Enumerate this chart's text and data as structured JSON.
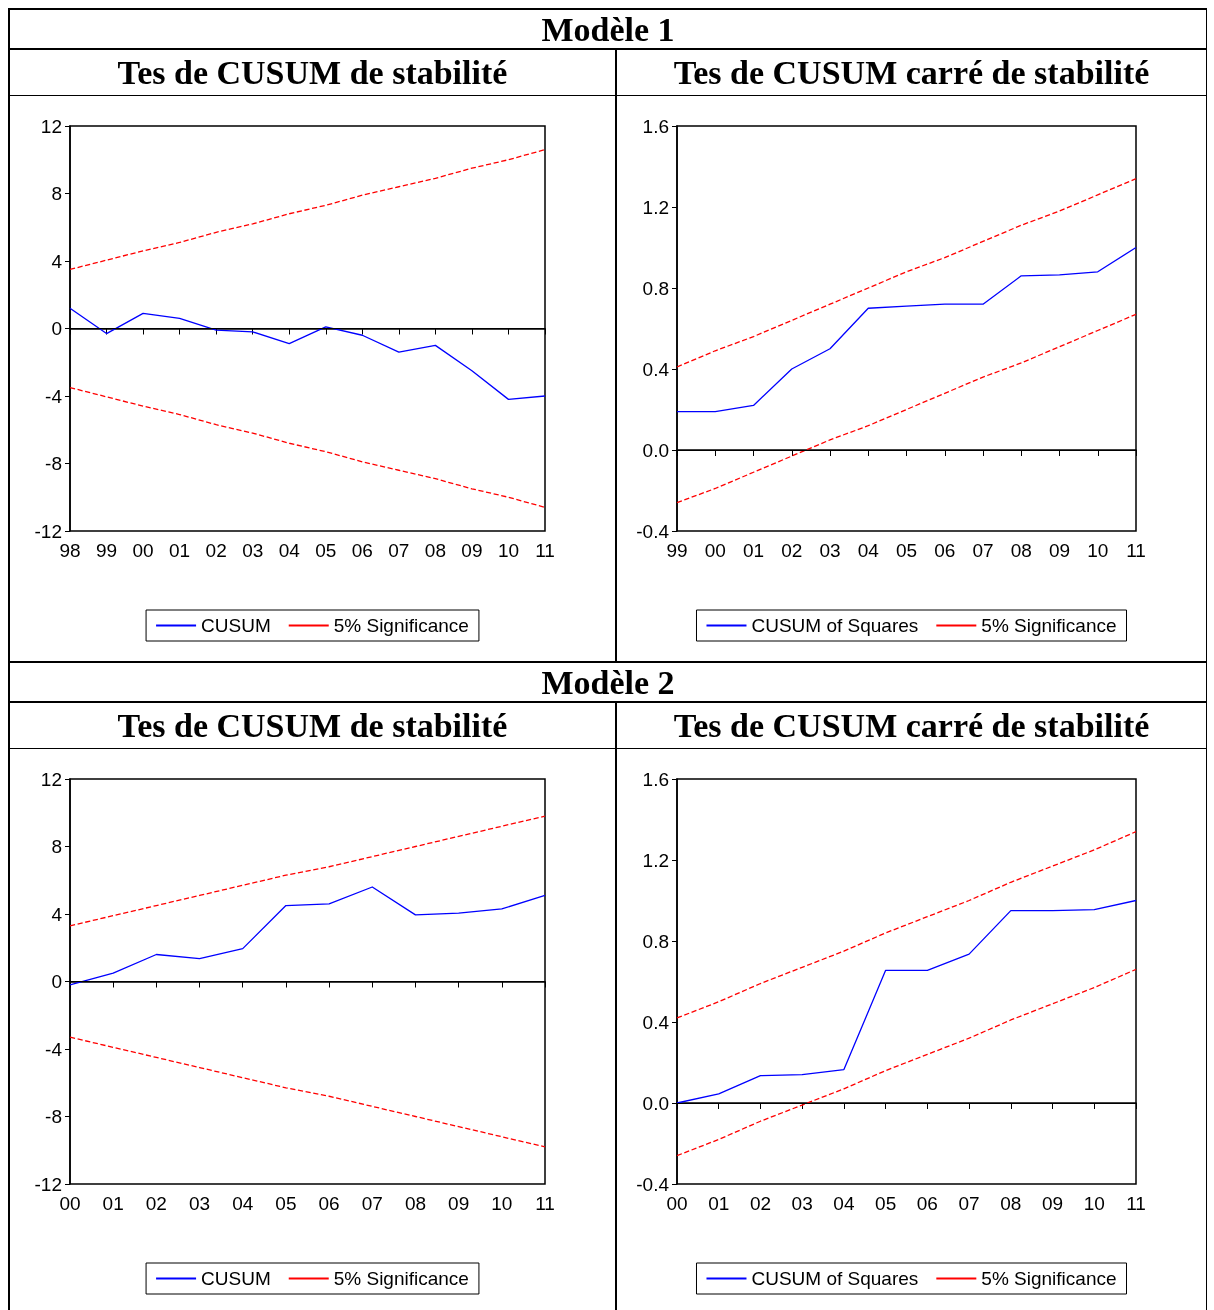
{
  "chart_data": [
    {
      "type": "line",
      "subtitle": "Modèle 1",
      "title": "Tes de CUSUM de stabilité",
      "categories": [
        "98",
        "99",
        "00",
        "01",
        "02",
        "03",
        "04",
        "05",
        "06",
        "07",
        "08",
        "09",
        "10",
        "11"
      ],
      "ylim": [
        -12,
        12
      ],
      "yticks": [
        -12,
        -8,
        -4,
        0,
        4,
        8,
        12
      ],
      "legend": "bottom",
      "marker": "none",
      "ref_lines": [
        {
          "axis": "y",
          "value": 0,
          "color": "#000000"
        }
      ],
      "series": [
        {
          "name": "CUSUM",
          "color": "#0000ff",
          "line_style": "solid",
          "values": [
            1.2,
            -0.3,
            0.9,
            0.6,
            -0.1,
            -0.2,
            -0.9,
            0.1,
            -0.4,
            -1.4,
            -1.0,
            -2.5,
            -4.2,
            -4.0
          ]
        },
        {
          "name": "5% Significance",
          "color": "#ff0000",
          "line_style": "dashed",
          "values": [
            3.5,
            4.05,
            4.6,
            5.1,
            5.7,
            6.2,
            6.8,
            7.3,
            7.9,
            8.4,
            8.9,
            9.5,
            10.0,
            10.6
          ]
        },
        {
          "color": "#ff0000",
          "line_style": "dashed",
          "values": [
            -3.5,
            -4.05,
            -4.6,
            -5.1,
            -5.7,
            -6.2,
            -6.8,
            -7.3,
            -7.9,
            -8.4,
            -8.9,
            -9.5,
            -10.0,
            -10.6
          ]
        }
      ]
    },
    {
      "type": "line",
      "title": "Tes de CUSUM carré de stabilité",
      "categories": [
        "99",
        "00",
        "01",
        "02",
        "03",
        "04",
        "05",
        "06",
        "07",
        "08",
        "09",
        "10",
        "11"
      ],
      "ylim": [
        -0.4,
        1.6
      ],
      "yticks": [
        {
          "value": -0.4,
          "label": "-0.4"
        },
        {
          "value": 0,
          "label": "0.0"
        },
        {
          "value": 0.4,
          "label": "0.4"
        },
        {
          "value": 0.8,
          "label": "0.8"
        },
        {
          "value": 1.2,
          "label": "1.2"
        },
        {
          "value": 1.6,
          "label": "1.6"
        }
      ],
      "legend": "bottom",
      "marker": "none",
      "ref_lines": [
        {
          "axis": "y",
          "value": 0,
          "color": "#000000"
        }
      ],
      "series": [
        {
          "name": "CUSUM of Squares",
          "color": "#0000ff",
          "line_style": "solid",
          "values": [
            0.19,
            0.19,
            0.22,
            0.4,
            0.5,
            0.7,
            0.71,
            0.72,
            0.72,
            0.86,
            0.865,
            0.88,
            1.0
          ]
        },
        {
          "name": "5% Significance",
          "color": "#ff0000",
          "line_style": "dashed",
          "values": [
            0.41,
            0.49,
            0.56,
            0.64,
            0.72,
            0.8,
            0.88,
            0.95,
            1.03,
            1.11,
            1.18,
            1.26,
            1.34
          ]
        },
        {
          "color": "#ff0000",
          "line_style": "dashed",
          "values": [
            -0.26,
            -0.19,
            -0.11,
            -0.03,
            0.05,
            0.12,
            0.2,
            0.28,
            0.36,
            0.43,
            0.51,
            0.59,
            0.67
          ]
        }
      ]
    },
    {
      "type": "line",
      "subtitle": "Modèle 2",
      "title": "Tes de CUSUM de stabilité",
      "categories": [
        "00",
        "01",
        "02",
        "03",
        "04",
        "05",
        "06",
        "07",
        "08",
        "09",
        "10",
        "11"
      ],
      "ylim": [
        -12,
        12
      ],
      "yticks": [
        -12,
        -8,
        -4,
        0,
        4,
        8,
        12
      ],
      "legend": "bottom",
      "marker": "none",
      "ref_lines": [
        {
          "axis": "y",
          "value": 0,
          "color": "#000000"
        }
      ],
      "series": [
        {
          "name": "CUSUM",
          "color": "#0000ff",
          "line_style": "solid",
          "values": [
            -0.2,
            0.5,
            1.6,
            1.35,
            1.95,
            4.5,
            4.6,
            5.6,
            3.95,
            4.05,
            4.3,
            5.1
          ]
        },
        {
          "name": "5% Significance",
          "color": "#ff0000",
          "line_style": "dashed",
          "values": [
            3.3,
            3.9,
            4.5,
            5.1,
            5.7,
            6.3,
            6.8,
            7.4,
            8.0,
            8.6,
            9.2,
            9.8
          ]
        },
        {
          "color": "#ff0000",
          "line_style": "dashed",
          "values": [
            -3.3,
            -3.9,
            -4.5,
            -5.1,
            -5.7,
            -6.3,
            -6.8,
            -7.4,
            -8.0,
            -8.6,
            -9.2,
            -9.8
          ]
        }
      ]
    },
    {
      "type": "line",
      "title": "Tes de CUSUM carré de stabilité",
      "categories": [
        "00",
        "01",
        "02",
        "03",
        "04",
        "05",
        "06",
        "07",
        "08",
        "09",
        "10",
        "11"
      ],
      "ylim": [
        -0.4,
        1.6
      ],
      "yticks": [
        {
          "value": -0.4,
          "label": "-0.4"
        },
        {
          "value": 0,
          "label": "0.0"
        },
        {
          "value": 0.4,
          "label": "0.4"
        },
        {
          "value": 0.8,
          "label": "0.8"
        },
        {
          "value": 1.2,
          "label": "1.2"
        },
        {
          "value": 1.6,
          "label": "1.6"
        }
      ],
      "legend": "bottom",
      "marker": "none",
      "ref_lines": [
        {
          "axis": "y",
          "value": 0,
          "color": "#000000"
        }
      ],
      "series": [
        {
          "name": "CUSUM of Squares",
          "color": "#0000ff",
          "line_style": "solid",
          "values": [
            0.0,
            0.045,
            0.135,
            0.14,
            0.165,
            0.655,
            0.655,
            0.735,
            0.95,
            0.95,
            0.955,
            1.0
          ]
        },
        {
          "name": "5% Significance",
          "color": "#ff0000",
          "line_style": "dashed",
          "values": [
            0.42,
            0.5,
            0.59,
            0.67,
            0.75,
            0.84,
            0.92,
            1.0,
            1.09,
            1.17,
            1.25,
            1.34
          ]
        },
        {
          "color": "#ff0000",
          "line_style": "dashed",
          "values": [
            -0.26,
            -0.18,
            -0.09,
            -0.01,
            0.07,
            0.16,
            0.24,
            0.32,
            0.41,
            0.49,
            0.57,
            0.66
          ]
        }
      ]
    }
  ]
}
